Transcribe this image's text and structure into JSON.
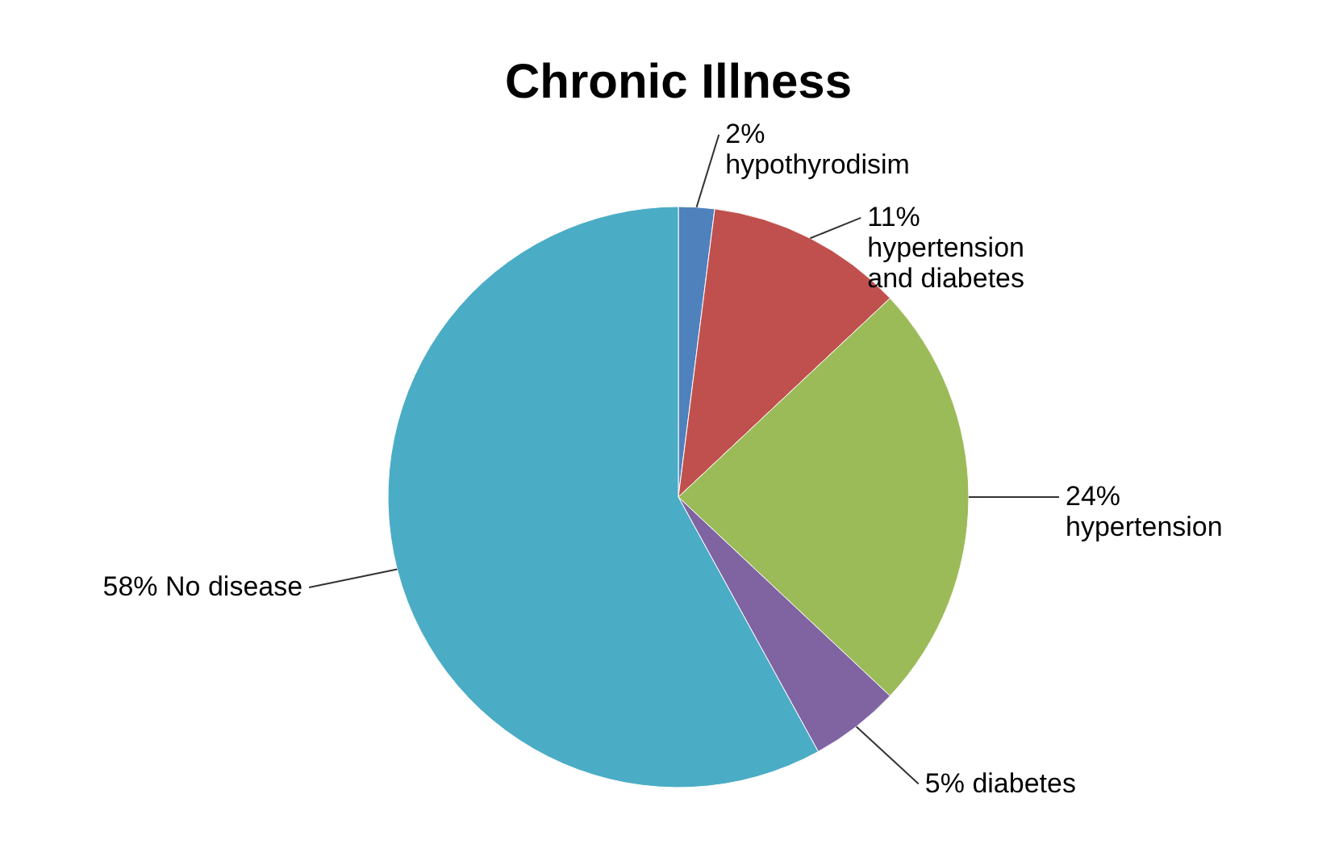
{
  "chart_data": {
    "type": "pie",
    "title": "Chronic Illness",
    "categories": [
      "hypothyrodisim",
      "hypertension and diabetes",
      "hypertension",
      "diabetes",
      "No disease"
    ],
    "values": [
      2,
      11,
      24,
      5,
      58
    ],
    "value_labels": [
      "2%",
      "11%",
      "24%",
      "5%",
      "58%"
    ],
    "colors": [
      "#4f81bd",
      "#c0504d",
      "#9bbb59",
      "#8064a2",
      "#4bacc6"
    ]
  }
}
